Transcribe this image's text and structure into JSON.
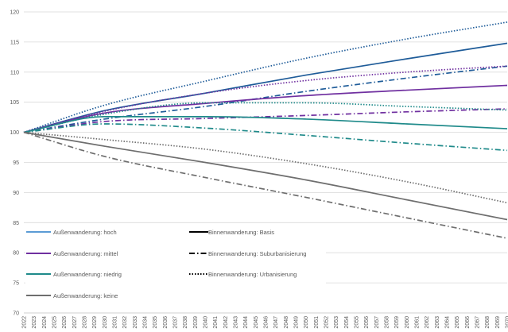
{
  "chart_data": {
    "type": "line",
    "title": "",
    "xlabel": "",
    "ylabel": "",
    "ylim": [
      70,
      120
    ],
    "yticks": [
      70,
      75,
      80,
      85,
      90,
      95,
      100,
      105,
      110,
      115,
      120
    ],
    "x_start": 2022,
    "x_end": 2070,
    "x_tick_labels": [
      "2022",
      "2023",
      "2024",
      "2025",
      "2026",
      "2027",
      "2028",
      "2029",
      "2030",
      "2031",
      "2032",
      "2033",
      "2034",
      "2035",
      "2036",
      "2037",
      "2038",
      "2039",
      "2040",
      "2041",
      "2042",
      "2043",
      "2044",
      "2045",
      "2046",
      "2047",
      "2048",
      "2049",
      "2050",
      "2051",
      "2052",
      "2053",
      "2054",
      "2055",
      "2056",
      "2057",
      "2058",
      "2059",
      "2060",
      "2061",
      "2062",
      "2063",
      "2064",
      "2065",
      "2066",
      "2067",
      "2068",
      "2069",
      "2070"
    ],
    "grid": "horizontal",
    "legend_position": "bottom-left",
    "legend": {
      "colors": [
        {
          "label": "Außenwanderung: hoch",
          "color": "#5B9BD5"
        },
        {
          "label": "Außenwanderung: mittel",
          "color": "#7030A0"
        },
        {
          "label": "Außenwanderung: niedrig",
          "color": "#1F8A8A"
        },
        {
          "label": "Außenwanderung: keine",
          "color": "#6E6E6E"
        }
      ],
      "styles": [
        {
          "label": "Binnenwanderung: Basis",
          "dash": "solid"
        },
        {
          "label": "Binnenwanderung: Suburbanisierung",
          "dash": "dashdot"
        },
        {
          "label": "Binnenwanderung: Urbanisierung",
          "dash": "dotted"
        }
      ]
    },
    "series": [
      {
        "color": "#1F5C99",
        "dash": "dotted",
        "x": [
          2022,
          2030,
          2040,
          2050,
          2060,
          2070
        ],
        "values": [
          100,
          104.5,
          108.5,
          112.3,
          115.5,
          118.3
        ]
      },
      {
        "color": "#1F5C99",
        "dash": "solid",
        "x": [
          2022,
          2030,
          2040,
          2050,
          2060,
          2070
        ],
        "values": [
          100,
          103.6,
          106.5,
          109.5,
          112.2,
          114.8
        ]
      },
      {
        "color": "#1F5C99",
        "dash": "dashdot",
        "x": [
          2022,
          2030,
          2040,
          2050,
          2060,
          2070
        ],
        "values": [
          100,
          102.2,
          104.3,
          106.8,
          109.0,
          111.0
        ]
      },
      {
        "color": "#7030A0",
        "dash": "dotted",
        "x": [
          2022,
          2030,
          2040,
          2050,
          2060,
          2070
        ],
        "values": [
          100,
          103.5,
          106.5,
          108.6,
          110.0,
          111.0
        ]
      },
      {
        "color": "#7030A0",
        "dash": "solid",
        "x": [
          2022,
          2030,
          2040,
          2050,
          2060,
          2070
        ],
        "values": [
          100,
          103.2,
          104.8,
          106.1,
          107.0,
          107.8
        ]
      },
      {
        "color": "#7030A0",
        "dash": "dashdot",
        "x": [
          2022,
          2030,
          2040,
          2050,
          2060,
          2070
        ],
        "values": [
          100,
          101.8,
          102.3,
          102.8,
          103.4,
          103.9
        ]
      },
      {
        "color": "#1F8A8A",
        "dash": "dotted",
        "x": [
          2022,
          2030,
          2040,
          2050,
          2060,
          2070
        ],
        "values": [
          100,
          103.0,
          104.9,
          104.9,
          104.3,
          103.7
        ]
      },
      {
        "color": "#1F8A8A",
        "dash": "solid",
        "x": [
          2022,
          2030,
          2040,
          2050,
          2060,
          2070
        ],
        "values": [
          100,
          102.6,
          102.6,
          102.2,
          101.4,
          100.6
        ]
      },
      {
        "color": "#1F8A8A",
        "dash": "dashdot",
        "x": [
          2022,
          2030,
          2040,
          2050,
          2060,
          2070
        ],
        "values": [
          100,
          101.4,
          100.7,
          99.5,
          98.2,
          97.0
        ]
      },
      {
        "color": "#6E6E6E",
        "dash": "dotted",
        "x": [
          2022,
          2030,
          2040,
          2050,
          2060,
          2070
        ],
        "values": [
          100,
          98.8,
          97.2,
          94.8,
          91.8,
          88.3
        ]
      },
      {
        "color": "#6E6E6E",
        "dash": "solid",
        "x": [
          2022,
          2030,
          2040,
          2050,
          2060,
          2070
        ],
        "values": [
          100,
          97.7,
          95.0,
          92.1,
          88.8,
          85.5
        ]
      },
      {
        "color": "#6E6E6E",
        "dash": "dashdot",
        "x": [
          2022,
          2030,
          2040,
          2050,
          2060,
          2070
        ],
        "values": [
          100,
          96.0,
          92.5,
          89.2,
          85.8,
          82.4
        ]
      }
    ]
  }
}
